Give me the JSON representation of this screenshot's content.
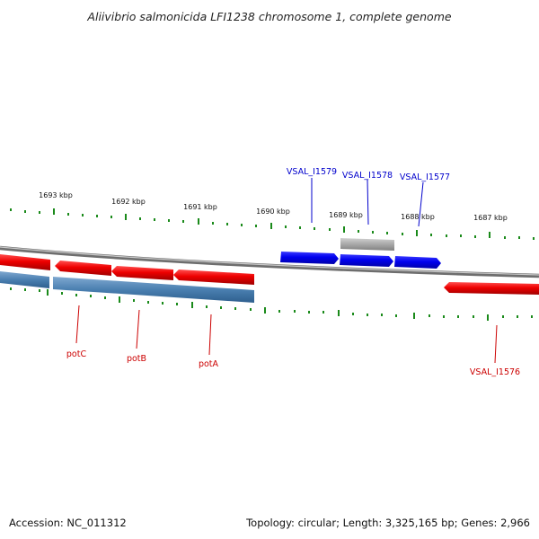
{
  "title": "Aliivibrio salmonicida LFI1238 chromosome 1, complete genome",
  "footer": {
    "accession": "Accession: NC_011312",
    "summary": "Topology: circular; Length: 3,325,165 bp; Genes: 2,966"
  },
  "ticks": [
    "1693 kbp",
    "1692 kbp",
    "1691 kbp",
    "1690 kbp",
    "1689 kbp",
    "1688 kbp",
    "1687 kbp"
  ],
  "genes_top": [
    "VSAL_I1579",
    "VSAL_I1578",
    "VSAL_I1577"
  ],
  "genes_bottom": [
    "potC",
    "potB",
    "potA",
    "VSAL_I1576"
  ],
  "colors": {
    "forward_gene": "#0000ee",
    "reverse_gene": "#ee0000",
    "cds_feature": "#4a7fb0",
    "other_feature": "#a8a8a8",
    "tick_marks": "#1a8a1a",
    "label_blue": "#0000cc",
    "label_red": "#cc0000",
    "backbone": "#888888"
  }
}
